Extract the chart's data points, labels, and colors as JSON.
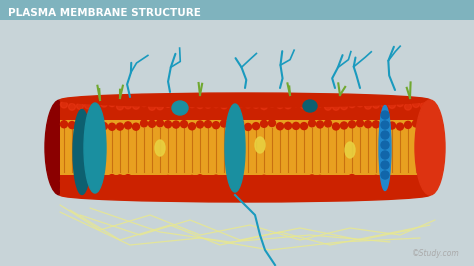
{
  "title": "PLASMA MEMBRANE STRUCTURE",
  "watermark": "©Study.com",
  "bg_color": "#c8d4d8",
  "title_bg": "#7fb3be",
  "title_color": "white",
  "membrane_colors": {
    "head_outer": "#cc2200",
    "head_inner": "#cc2200",
    "tail": "#e8a020",
    "protein_teal": "#1a8fa0",
    "protein_dark_teal": "#0d6070",
    "glyco_green": "#70a830",
    "glyco_blue": "#1a9abe",
    "cholesterol_yellow": "#e8d040"
  },
  "figsize": [
    4.74,
    2.66
  ],
  "dpi": 100
}
